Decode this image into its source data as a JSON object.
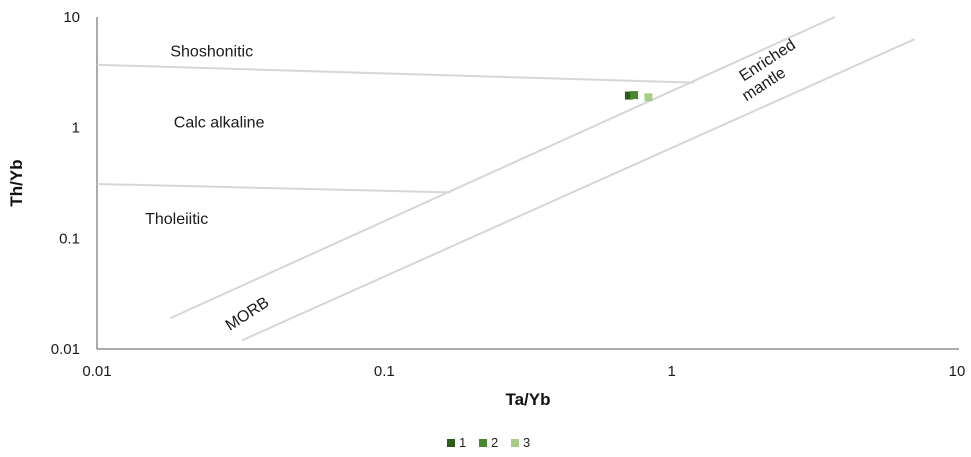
{
  "chart_data": {
    "type": "scatter",
    "title": "",
    "xlabel": "Ta/Yb",
    "ylabel": "Th/Yb",
    "xscale": "log",
    "yscale": "log",
    "xlim": [
      0.01,
      10
    ],
    "ylim": [
      0.01,
      10
    ],
    "xticks": [
      "0.01",
      "0.1",
      "1",
      "10"
    ],
    "yticks": [
      "0.01",
      "0.1",
      "1",
      "10"
    ],
    "grid": false,
    "legend_position": "bottom",
    "series": [
      {
        "name": "1",
        "color": "#2e5a1c",
        "points": [
          [
            0.71,
            1.95
          ]
        ]
      },
      {
        "name": "2",
        "color": "#4a8a2e",
        "points": [
          [
            0.74,
            1.97
          ]
        ]
      },
      {
        "name": "3",
        "color": "#a6cf85",
        "points": [
          [
            0.83,
            1.88
          ]
        ]
      }
    ],
    "boundaries": [
      {
        "id": "shoshonitic-calcalkaline",
        "color": "#d6d6d6",
        "points": [
          [
            0.01,
            3.7
          ],
          [
            1.2,
            2.55
          ]
        ]
      },
      {
        "id": "calcalkaline-tholeiitic",
        "color": "#d6d6d6",
        "points": [
          [
            0.01,
            0.31
          ],
          [
            0.17,
            0.26
          ]
        ]
      },
      {
        "id": "mantle-array-upper",
        "color": "#d6d6d6",
        "points": [
          [
            0.018,
            0.019
          ],
          [
            3.7,
            10
          ]
        ]
      },
      {
        "id": "mantle-array-lower",
        "color": "#d6d6d6",
        "points": [
          [
            0.032,
            0.012
          ],
          [
            7.0,
            6.3
          ]
        ]
      }
    ],
    "region_labels": [
      {
        "text": "Shoshonitic",
        "x": 0.018,
        "y": 4.4,
        "rotate": 0
      },
      {
        "text": "Calc alkaline",
        "x": 0.0185,
        "y": 1.0,
        "rotate": 0
      },
      {
        "text": "Tholeiitic",
        "x": 0.0147,
        "y": 0.135,
        "rotate": 0
      },
      {
        "text": "MORB",
        "x": 0.029,
        "y": 0.0145,
        "rotate": -33
      },
      {
        "text": "Enriched",
        "x": 1.78,
        "y": 2.6,
        "rotate": -33
      },
      {
        "text": "mantle",
        "x": 1.82,
        "y": 1.72,
        "rotate": -33
      }
    ]
  }
}
